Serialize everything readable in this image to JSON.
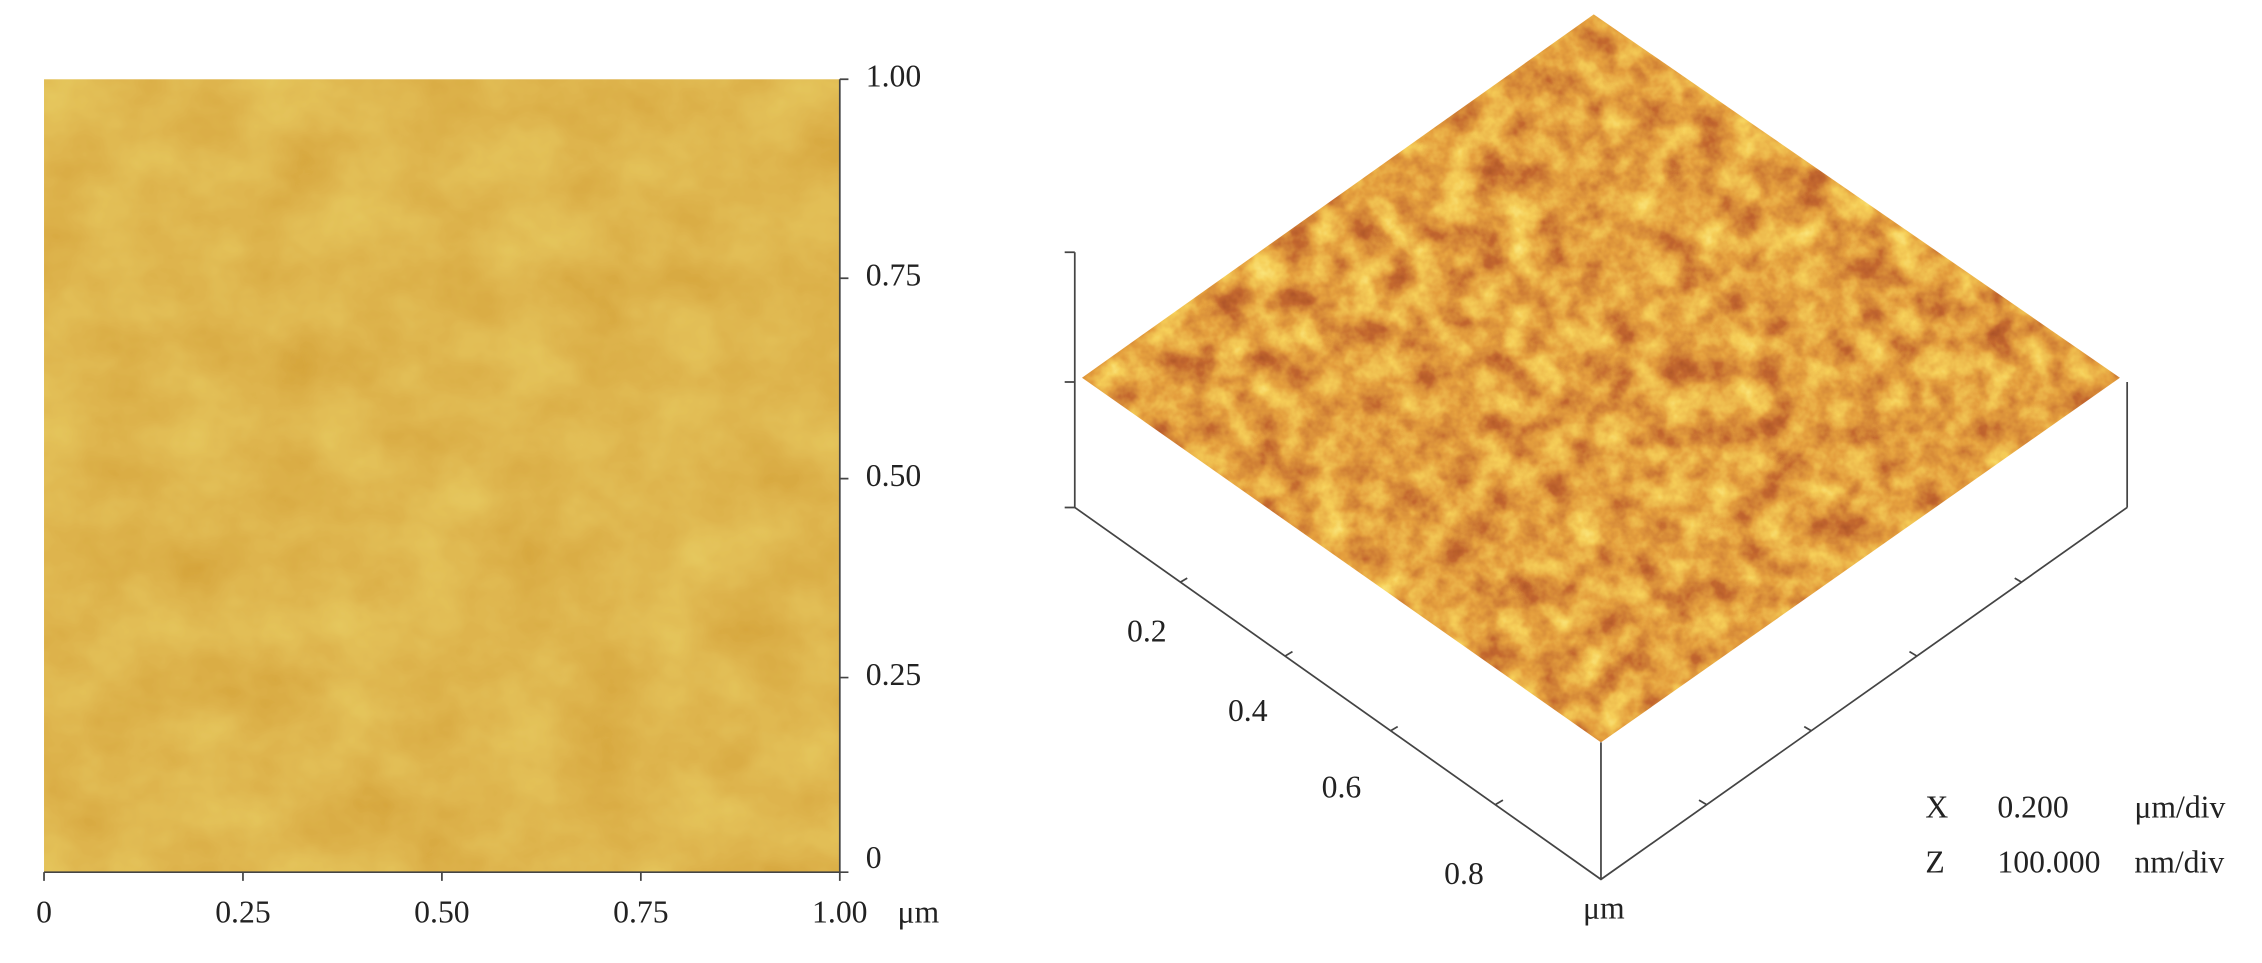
{
  "left_panel": {
    "x_ticks": [
      "0",
      "0.25",
      "0.50",
      "0.75",
      "1.00"
    ],
    "y_ticks": [
      "1.00",
      "0.75",
      "0.50",
      "0.25",
      "0"
    ],
    "x_unit": "μm"
  },
  "right_panel": {
    "axis_ticks": [
      "0.2",
      "0.4",
      "0.6",
      "0.8"
    ],
    "axis_unit": "μm",
    "scale": [
      [
        "X",
        "0.200",
        "μm/div"
      ],
      [
        "Z",
        "100.000",
        "nm/div"
      ]
    ]
  }
}
